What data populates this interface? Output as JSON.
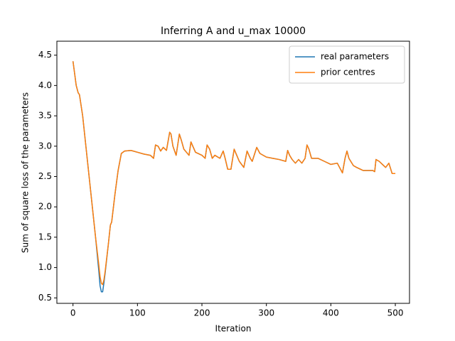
{
  "chart_data": {
    "type": "line",
    "title": "Inferring A and u_max 10000",
    "x_label": "Iteration",
    "y_label": "Sum of square loss of the parameters",
    "x": [
      0,
      5,
      8,
      10,
      15,
      20,
      25,
      30,
      35,
      40,
      42,
      44,
      46,
      48,
      50,
      55,
      58,
      60,
      65,
      70,
      75,
      80,
      90,
      100,
      110,
      120,
      125,
      128,
      132,
      136,
      140,
      145,
      150,
      152,
      155,
      160,
      165,
      168,
      172,
      176,
      180,
      183,
      190,
      200,
      205,
      208,
      212,
      216,
      220,
      228,
      233,
      236,
      240,
      245,
      250,
      258,
      265,
      270,
      275,
      278,
      285,
      290,
      300,
      310,
      320,
      330,
      333,
      336,
      340,
      345,
      350,
      355,
      360,
      363,
      366,
      370,
      380,
      390,
      400,
      410,
      418,
      422,
      425,
      428,
      435,
      440,
      450,
      460,
      465,
      468,
      470,
      475,
      480,
      485,
      490,
      495,
      500
    ],
    "series": [
      {
        "name": "real parameters",
        "color": "#1f77b4",
        "values": [
          4.4,
          4.0,
          3.88,
          3.85,
          3.5,
          3.0,
          2.5,
          2.0,
          1.5,
          0.95,
          0.7,
          0.6,
          0.6,
          0.75,
          0.92,
          1.4,
          1.7,
          1.75,
          2.2,
          2.6,
          2.88,
          2.92,
          2.93,
          2.9,
          2.87,
          2.85,
          2.8,
          3.02,
          3.0,
          2.92,
          2.98,
          2.93,
          3.23,
          3.2,
          3.0,
          2.85,
          3.2,
          3.1,
          2.95,
          2.9,
          2.85,
          3.07,
          2.9,
          2.85,
          2.8,
          3.02,
          2.95,
          2.8,
          2.85,
          2.8,
          2.92,
          2.8,
          2.62,
          2.62,
          2.95,
          2.75,
          2.65,
          2.92,
          2.8,
          2.75,
          2.98,
          2.88,
          2.82,
          2.8,
          2.78,
          2.75,
          2.93,
          2.85,
          2.78,
          2.72,
          2.78,
          2.72,
          2.8,
          3.02,
          2.95,
          2.8,
          2.8,
          2.75,
          2.7,
          2.72,
          2.56,
          2.8,
          2.92,
          2.8,
          2.68,
          2.65,
          2.6,
          2.6,
          2.6,
          2.58,
          2.78,
          2.75,
          2.7,
          2.65,
          2.72,
          2.55,
          2.55
        ]
      },
      {
        "name": "prior centres",
        "color": "#ff7f0e",
        "values": [
          4.4,
          4.0,
          3.88,
          3.85,
          3.5,
          3.0,
          2.5,
          2.0,
          1.5,
          1.05,
          0.85,
          0.74,
          0.72,
          0.8,
          0.95,
          1.4,
          1.7,
          1.75,
          2.2,
          2.6,
          2.88,
          2.92,
          2.93,
          2.9,
          2.87,
          2.85,
          2.8,
          3.02,
          3.0,
          2.92,
          2.98,
          2.93,
          3.23,
          3.2,
          3.0,
          2.85,
          3.2,
          3.1,
          2.95,
          2.9,
          2.85,
          3.07,
          2.9,
          2.85,
          2.8,
          3.02,
          2.95,
          2.8,
          2.85,
          2.8,
          2.92,
          2.8,
          2.62,
          2.62,
          2.95,
          2.75,
          2.65,
          2.92,
          2.8,
          2.75,
          2.98,
          2.88,
          2.82,
          2.8,
          2.78,
          2.75,
          2.93,
          2.85,
          2.78,
          2.72,
          2.78,
          2.72,
          2.8,
          3.02,
          2.95,
          2.8,
          2.8,
          2.75,
          2.7,
          2.72,
          2.56,
          2.8,
          2.92,
          2.8,
          2.68,
          2.65,
          2.6,
          2.6,
          2.6,
          2.58,
          2.78,
          2.75,
          2.7,
          2.65,
          2.72,
          2.55,
          2.55
        ]
      }
    ],
    "xlim": [
      -25,
      522
    ],
    "ylim": [
      0.41,
      4.73
    ],
    "xticks": [
      0,
      100,
      200,
      300,
      400,
      500
    ],
    "yticks": [
      0.5,
      {
        "value": 1,
        "label": "1.0"
      },
      1.5,
      {
        "value": 2,
        "label": "2.0"
      },
      2.5,
      {
        "value": 3,
        "label": "3.0"
      },
      3.5,
      {
        "value": 4,
        "label": "4.0"
      },
      4.5
    ],
    "legend": "upper right"
  }
}
